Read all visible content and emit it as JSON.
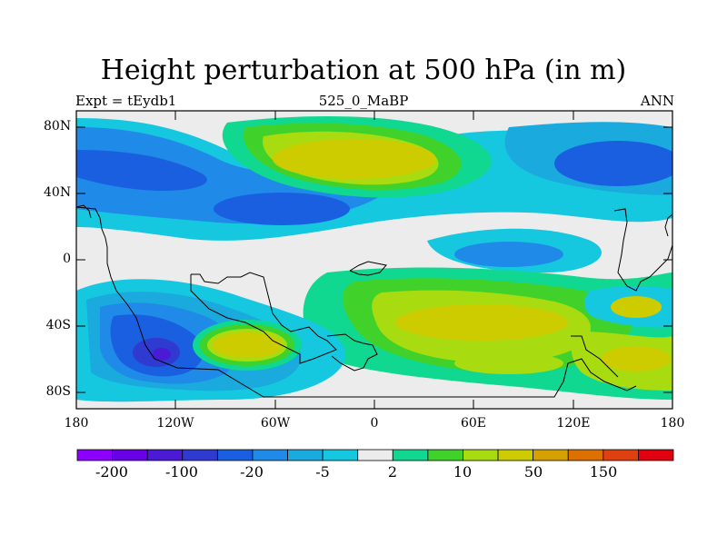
{
  "title": "Height perturbation at 500 hPa (in m)",
  "left_string": "Expt = tEydb1",
  "center_string": "525_0_MaBP",
  "right_string": "ANN",
  "lat_labels": [
    "80N",
    "40N",
    "0",
    "40S",
    "80S"
  ],
  "lon_labels": [
    "180",
    "120W",
    "60W",
    "0",
    "60E",
    "120E",
    "180"
  ],
  "colorbar": {
    "colors": [
      "#8b00ff",
      "#6a00e6",
      "#4a1ad6",
      "#2f3ad0",
      "#1a5fe0",
      "#1f8ae8",
      "#1aaadd",
      "#15c8e0",
      "#ececec",
      "#10d890",
      "#40d22a",
      "#a8dc10",
      "#cccc00",
      "#d6a000",
      "#dc7000",
      "#e04010",
      "#e00010"
    ],
    "labels": [
      "-200",
      "-100",
      "-20",
      "-5",
      "2",
      "10",
      "50",
      "150"
    ]
  },
  "colors": {
    "neutral": "#ececec",
    "blue_light": "#15c8e0",
    "blue_mid": "#1aaadd",
    "blue": "#1f8ae8",
    "blue_dark": "#1a5fe0",
    "blue_deep": "#2f3ad0",
    "green": "#10d890",
    "lime": "#40d22a",
    "yellowgreen": "#a8dc10",
    "yellow": "#cccc00"
  }
}
